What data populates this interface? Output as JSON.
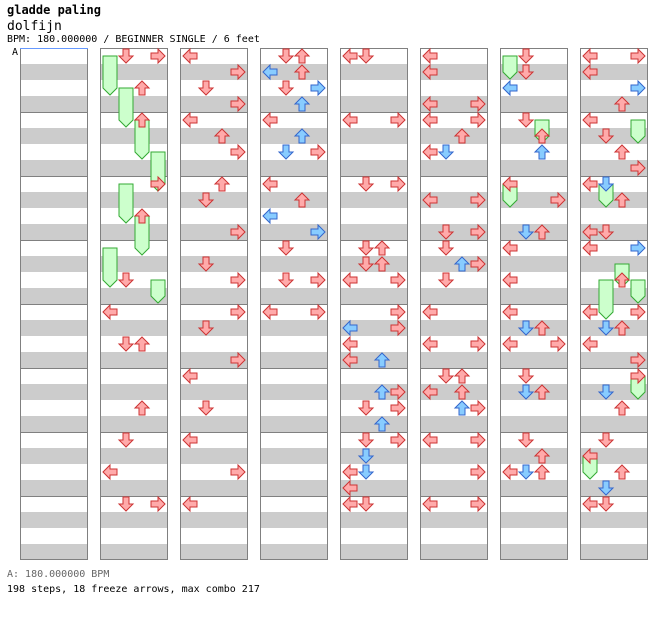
{
  "header": {
    "title": "gladde paling",
    "artist": "dolfijn",
    "meta": "BPM: 180.000000 / BEGINNER SINGLE / 6 feet",
    "bpm_marker": "A"
  },
  "footer": {
    "bpm_line": "A: 180.000000 BPM",
    "stats_line": "198 steps, 18 freeze arrows, max combo 217"
  },
  "colors": {
    "stripe": "#cccccc",
    "border": "#808080",
    "note_red": "#ffaaaa",
    "note_red_edge": "#cc3333",
    "note_blue": "#88ccff",
    "note_blue_edge": "#3366cc",
    "freeze_fill": "#ccffcc",
    "freeze_edge": "#33aa33",
    "start_line": "#6699ff"
  },
  "chart_data": {
    "type": "step-chart",
    "columns": 8,
    "measures_per_column": 8,
    "beats_per_measure": 4,
    "lanes": [
      "left",
      "down",
      "up",
      "right"
    ],
    "notes": [
      [
        1,
        0,
        1,
        "red"
      ],
      [
        1,
        0,
        3,
        "red"
      ],
      [
        1,
        2,
        2,
        "red"
      ],
      [
        1,
        4,
        2,
        "red"
      ],
      [
        1,
        8,
        3,
        "red"
      ],
      [
        1,
        10,
        2,
        "red"
      ],
      [
        1,
        14,
        1,
        "red"
      ],
      [
        1,
        16,
        0,
        "red"
      ],
      [
        1,
        18,
        1,
        "red"
      ],
      [
        1,
        18,
        2,
        "red"
      ],
      [
        1,
        22,
        2,
        "red"
      ],
      [
        1,
        24,
        1,
        "red"
      ],
      [
        1,
        26,
        0,
        "red"
      ],
      [
        1,
        28,
        1,
        "red"
      ],
      [
        1,
        28,
        3,
        "red"
      ],
      [
        2,
        0,
        0,
        "red"
      ],
      [
        2,
        1,
        3,
        "red"
      ],
      [
        2,
        2,
        1,
        "red"
      ],
      [
        2,
        3,
        3,
        "red"
      ],
      [
        2,
        4,
        0,
        "red"
      ],
      [
        2,
        5,
        2,
        "red"
      ],
      [
        2,
        6,
        3,
        "red"
      ],
      [
        2,
        8,
        2,
        "red"
      ],
      [
        2,
        9,
        1,
        "red"
      ],
      [
        2,
        11,
        3,
        "red"
      ],
      [
        2,
        13,
        1,
        "red"
      ],
      [
        2,
        14,
        3,
        "red"
      ],
      [
        2,
        16,
        3,
        "red"
      ],
      [
        2,
        17,
        1,
        "red"
      ],
      [
        2,
        19,
        3,
        "red"
      ],
      [
        2,
        20,
        0,
        "red"
      ],
      [
        2,
        22,
        1,
        "red"
      ],
      [
        2,
        24,
        0,
        "red"
      ],
      [
        2,
        26,
        3,
        "red"
      ],
      [
        2,
        28,
        0,
        "red"
      ],
      [
        3,
        0,
        2,
        "red"
      ],
      [
        3,
        0,
        1,
        "red"
      ],
      [
        3,
        1,
        2,
        "red"
      ],
      [
        3,
        1,
        0,
        "blue"
      ],
      [
        3,
        2,
        1,
        "red"
      ],
      [
        3,
        2,
        3,
        "blue"
      ],
      [
        3,
        3,
        2,
        "blue"
      ],
      [
        3,
        4,
        0,
        "red"
      ],
      [
        3,
        5,
        2,
        "blue"
      ],
      [
        3,
        6,
        1,
        "blue"
      ],
      [
        3,
        6,
        3,
        "red"
      ],
      [
        3,
        8,
        0,
        "red"
      ],
      [
        3,
        9,
        2,
        "red"
      ],
      [
        3,
        10,
        0,
        "blue"
      ],
      [
        3,
        11,
        3,
        "blue"
      ],
      [
        3,
        12,
        1,
        "red"
      ],
      [
        3,
        14,
        1,
        "red"
      ],
      [
        3,
        14,
        3,
        "red"
      ],
      [
        3,
        16,
        0,
        "red"
      ],
      [
        3,
        16,
        3,
        "red"
      ],
      [
        4,
        0,
        0,
        "red"
      ],
      [
        4,
        0,
        1,
        "red"
      ],
      [
        4,
        4,
        0,
        "red"
      ],
      [
        4,
        4,
        3,
        "red"
      ],
      [
        4,
        8,
        1,
        "red"
      ],
      [
        4,
        8,
        3,
        "red"
      ],
      [
        4,
        12,
        1,
        "red"
      ],
      [
        4,
        12,
        2,
        "red"
      ],
      [
        4,
        13,
        1,
        "red"
      ],
      [
        4,
        13,
        2,
        "red"
      ],
      [
        4,
        14,
        0,
        "red"
      ],
      [
        4,
        14,
        3,
        "red"
      ],
      [
        4,
        16,
        3,
        "red"
      ],
      [
        4,
        17,
        0,
        "blue"
      ],
      [
        4,
        17,
        3,
        "red"
      ],
      [
        4,
        18,
        0,
        "red"
      ],
      [
        4,
        19,
        2,
        "blue"
      ],
      [
        4,
        19,
        0,
        "red"
      ],
      [
        4,
        21,
        2,
        "blue"
      ],
      [
        4,
        21,
        3,
        "red"
      ],
      [
        4,
        22,
        3,
        "red"
      ],
      [
        4,
        22,
        1,
        "red"
      ],
      [
        4,
        23,
        2,
        "blue"
      ],
      [
        4,
        24,
        1,
        "red"
      ],
      [
        4,
        24,
        3,
        "red"
      ],
      [
        4,
        25,
        1,
        "blue"
      ],
      [
        4,
        26,
        0,
        "red"
      ],
      [
        4,
        26,
        1,
        "blue"
      ],
      [
        4,
        27,
        0,
        "red"
      ],
      [
        4,
        28,
        0,
        "red"
      ],
      [
        4,
        28,
        1,
        "red"
      ],
      [
        5,
        0,
        0,
        "red"
      ],
      [
        5,
        1,
        0,
        "red"
      ],
      [
        5,
        3,
        0,
        "red"
      ],
      [
        5,
        3,
        3,
        "red"
      ],
      [
        5,
        4,
        0,
        "red"
      ],
      [
        5,
        4,
        3,
        "red"
      ],
      [
        5,
        5,
        2,
        "red"
      ],
      [
        5,
        6,
        1,
        "blue"
      ],
      [
        5,
        6,
        0,
        "red"
      ],
      [
        5,
        9,
        0,
        "red"
      ],
      [
        5,
        9,
        3,
        "red"
      ],
      [
        5,
        11,
        1,
        "red"
      ],
      [
        5,
        11,
        3,
        "red"
      ],
      [
        5,
        12,
        1,
        "red"
      ],
      [
        5,
        13,
        2,
        "blue"
      ],
      [
        5,
        13,
        3,
        "red"
      ],
      [
        5,
        14,
        1,
        "red"
      ],
      [
        5,
        16,
        0,
        "red"
      ],
      [
        5,
        18,
        0,
        "red"
      ],
      [
        5,
        18,
        3,
        "red"
      ],
      [
        5,
        20,
        2,
        "red"
      ],
      [
        5,
        20,
        1,
        "red"
      ],
      [
        5,
        21,
        2,
        "red"
      ],
      [
        5,
        21,
        0,
        "red"
      ],
      [
        5,
        22,
        2,
        "blue"
      ],
      [
        5,
        22,
        3,
        "red"
      ],
      [
        5,
        24,
        0,
        "red"
      ],
      [
        5,
        24,
        3,
        "red"
      ],
      [
        5,
        26,
        3,
        "red"
      ],
      [
        5,
        28,
        0,
        "red"
      ],
      [
        5,
        28,
        3,
        "red"
      ],
      [
        6,
        0,
        1,
        "red"
      ],
      [
        6,
        1,
        1,
        "red"
      ],
      [
        6,
        2,
        0,
        "blue"
      ],
      [
        6,
        4,
        1,
        "red"
      ],
      [
        6,
        5,
        2,
        "red"
      ],
      [
        6,
        6,
        2,
        "blue"
      ],
      [
        6,
        8,
        0,
        "red"
      ],
      [
        6,
        9,
        3,
        "red"
      ],
      [
        6,
        11,
        1,
        "blue"
      ],
      [
        6,
        11,
        2,
        "red"
      ],
      [
        6,
        12,
        0,
        "red"
      ],
      [
        6,
        14,
        0,
        "red"
      ],
      [
        6,
        16,
        0,
        "red"
      ],
      [
        6,
        17,
        1,
        "blue"
      ],
      [
        6,
        17,
        2,
        "red"
      ],
      [
        6,
        18,
        0,
        "red"
      ],
      [
        6,
        18,
        3,
        "red"
      ],
      [
        6,
        20,
        1,
        "red"
      ],
      [
        6,
        21,
        1,
        "blue"
      ],
      [
        6,
        21,
        2,
        "red"
      ],
      [
        6,
        24,
        1,
        "red"
      ],
      [
        6,
        25,
        2,
        "red"
      ],
      [
        6,
        26,
        0,
        "red"
      ],
      [
        6,
        26,
        1,
        "blue"
      ],
      [
        6,
        26,
        2,
        "red"
      ],
      [
        7,
        0,
        0,
        "red"
      ],
      [
        7,
        0,
        3,
        "red"
      ],
      [
        7,
        1,
        0,
        "red"
      ],
      [
        7,
        2,
        3,
        "blue"
      ],
      [
        7,
        3,
        2,
        "red"
      ],
      [
        7,
        4,
        0,
        "red"
      ],
      [
        7,
        5,
        1,
        "red"
      ],
      [
        7,
        6,
        2,
        "red"
      ],
      [
        7,
        7,
        3,
        "red"
      ],
      [
        7,
        8,
        1,
        "blue"
      ],
      [
        7,
        8,
        0,
        "red"
      ],
      [
        7,
        9,
        2,
        "red"
      ],
      [
        7,
        11,
        0,
        "red"
      ],
      [
        7,
        11,
        1,
        "red"
      ],
      [
        7,
        12,
        0,
        "red"
      ],
      [
        7,
        12,
        3,
        "blue"
      ],
      [
        7,
        14,
        2,
        "red"
      ],
      [
        7,
        16,
        0,
        "red"
      ],
      [
        7,
        16,
        3,
        "red"
      ],
      [
        7,
        17,
        1,
        "blue"
      ],
      [
        7,
        17,
        2,
        "red"
      ],
      [
        7,
        18,
        0,
        "red"
      ],
      [
        7,
        19,
        3,
        "red"
      ],
      [
        7,
        20,
        3,
        "red"
      ],
      [
        7,
        21,
        1,
        "blue"
      ],
      [
        7,
        22,
        2,
        "red"
      ],
      [
        7,
        24,
        1,
        "red"
      ],
      [
        7,
        25,
        0,
        "red"
      ],
      [
        7,
        26,
        2,
        "red"
      ],
      [
        7,
        27,
        1,
        "blue"
      ],
      [
        7,
        28,
        0,
        "red"
      ],
      [
        7,
        28,
        1,
        "red"
      ]
    ],
    "freezes": [
      [
        1,
        0,
        0,
        2,
        "left"
      ],
      [
        1,
        2,
        1,
        4,
        "down"
      ],
      [
        1,
        4,
        2,
        6,
        "up"
      ],
      [
        1,
        6,
        3,
        8,
        "right"
      ],
      [
        1,
        8,
        1,
        10,
        "down"
      ],
      [
        1,
        10,
        2,
        12,
        "up"
      ],
      [
        1,
        12,
        0,
        14,
        "left"
      ],
      [
        1,
        14,
        3,
        15,
        "right"
      ],
      [
        6,
        0,
        0,
        1,
        "left"
      ],
      [
        6,
        4,
        2,
        5,
        "up"
      ],
      [
        6,
        8,
        0,
        9,
        "left"
      ],
      [
        7,
        4,
        3,
        5,
        "up"
      ],
      [
        7,
        8,
        1,
        9,
        "down"
      ],
      [
        7,
        13,
        2,
        14,
        "up"
      ],
      [
        7,
        14,
        1,
        16,
        "down"
      ],
      [
        7,
        14,
        3,
        15,
        "right"
      ],
      [
        7,
        20,
        3,
        21,
        "up"
      ],
      [
        7,
        25,
        0,
        26,
        "left"
      ]
    ]
  }
}
